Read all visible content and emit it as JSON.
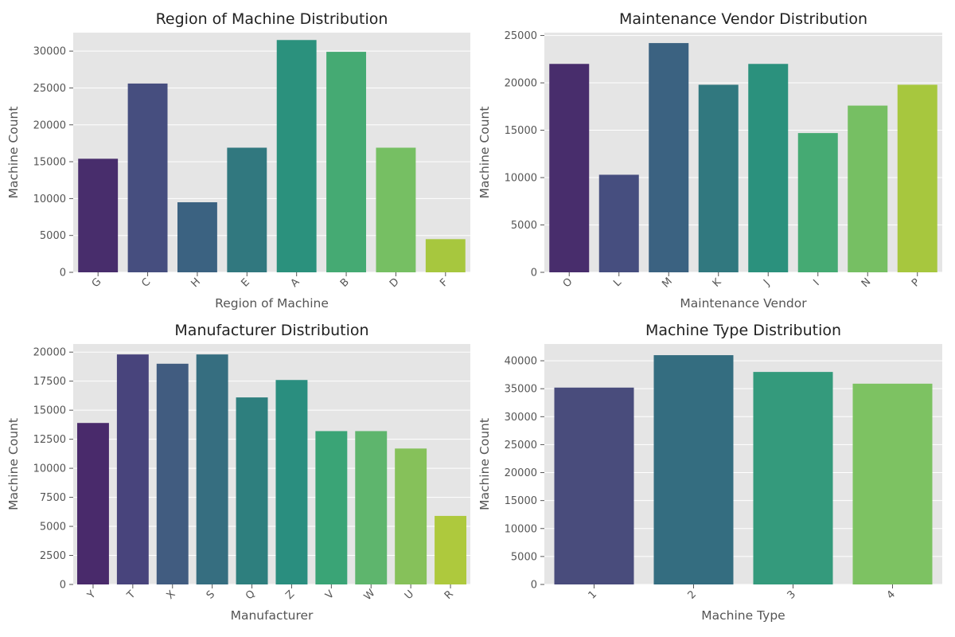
{
  "chart_data": [
    {
      "type": "bar",
      "title": "Region of Machine Distribution",
      "xlabel": "Region of Machine",
      "ylabel": "Machine Count",
      "categories": [
        "G",
        "C",
        "H",
        "E",
        "A",
        "B",
        "D",
        "F"
      ],
      "values": [
        15400,
        25600,
        9500,
        16900,
        31500,
        29900,
        16900,
        4500
      ],
      "ylim": [
        0,
        32500
      ],
      "yticks": [
        0,
        5000,
        10000,
        15000,
        20000,
        25000,
        30000
      ],
      "colors": [
        "#482d6c",
        "#464e7f",
        "#3b6281",
        "#31787f",
        "#2b917d",
        "#45aa73",
        "#76bf63",
        "#a7c73e"
      ],
      "grid": true,
      "xtick_rotation": 45
    },
    {
      "type": "bar",
      "title": "Maintenance Vendor Distribution",
      "xlabel": "Maintenance Vendor",
      "ylabel": "Machine Count",
      "categories": [
        "O",
        "L",
        "M",
        "K",
        "J",
        "I",
        "N",
        "P"
      ],
      "values": [
        22000,
        10300,
        24200,
        19800,
        22000,
        14700,
        17600,
        19800
      ],
      "ylim": [
        0,
        25300
      ],
      "yticks": [
        0,
        5000,
        10000,
        15000,
        20000,
        25000
      ],
      "colors": [
        "#482d6c",
        "#464e7f",
        "#3b6281",
        "#31787f",
        "#2b917d",
        "#45aa73",
        "#76bf63",
        "#a7c73e"
      ],
      "grid": true,
      "xtick_rotation": 45
    },
    {
      "type": "bar",
      "title": "Manufacturer Distribution",
      "xlabel": "Manufacturer",
      "ylabel": "Machine Count",
      "categories": [
        "Y",
        "T",
        "X",
        "S",
        "Q",
        "Z",
        "V",
        "W",
        "U",
        "R"
      ],
      "values": [
        13900,
        19800,
        19000,
        19800,
        16100,
        17600,
        13200,
        13200,
        11700,
        5900
      ],
      "ylim": [
        0,
        20700
      ],
      "yticks": [
        0,
        2500,
        5000,
        7500,
        10000,
        12500,
        15000,
        17500,
        20000
      ],
      "colors": [
        "#492a6b",
        "#48447c",
        "#415c80",
        "#366e80",
        "#2e7f7e",
        "#2a8e7f",
        "#3aa476",
        "#5eb56d",
        "#86c15a",
        "#aec93d"
      ],
      "grid": true,
      "xtick_rotation": 45
    },
    {
      "type": "bar",
      "title": "Machine Type Distribution",
      "xlabel": "Machine Type",
      "ylabel": "Machine Count",
      "categories": [
        "1",
        "2",
        "3",
        "4"
      ],
      "values": [
        35200,
        41000,
        38000,
        35900
      ],
      "ylim": [
        0,
        43000
      ],
      "yticks": [
        0,
        5000,
        10000,
        15000,
        20000,
        25000,
        30000,
        35000,
        40000
      ],
      "colors": [
        "#494c7c",
        "#346d80",
        "#349a7c",
        "#7dc262"
      ],
      "grid": true,
      "xtick_rotation": 45
    }
  ]
}
